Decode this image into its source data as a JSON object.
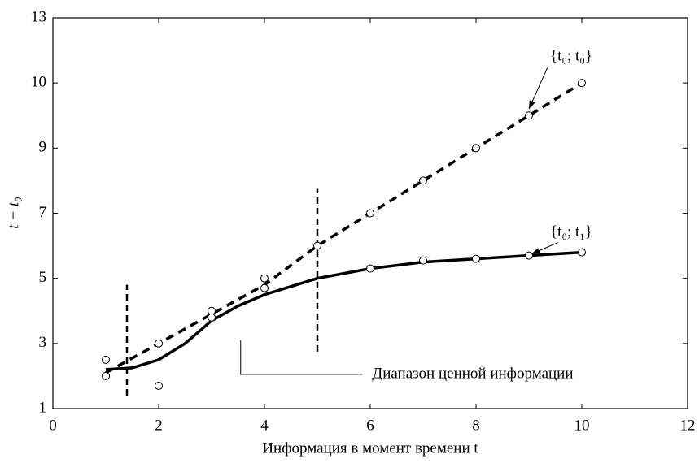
{
  "chart_data": {
    "type": "line",
    "xlabel": "Информация в момент времени t",
    "ylabel": "t − t₀",
    "xlim": [
      0,
      12
    ],
    "xticks": [
      0,
      2,
      4,
      6,
      8,
      10,
      12
    ],
    "ylim": [
      1,
      13
    ],
    "yticks": [
      1,
      3,
      5,
      7,
      9,
      10,
      13
    ],
    "series": [
      {
        "name": "{t₀; t₀}",
        "color": "#000",
        "style": "dashed",
        "x": [
          1,
          2,
          3,
          4,
          5,
          6,
          7,
          8,
          9,
          10
        ],
        "values": [
          2.1,
          3,
          3.9,
          4.8,
          6,
          7,
          8,
          9,
          9.5,
          10
        ],
        "points_x": [
          1,
          1,
          2,
          3,
          4,
          5,
          6,
          7,
          8,
          9,
          10
        ],
        "points": [
          2.5,
          2,
          3,
          4,
          5,
          6,
          7,
          8,
          9,
          9.5,
          10
        ],
        "label_xy": [
          9.8,
          11.2
        ],
        "arrow_from": [
          9.35,
          10.7
        ],
        "arrow_to": [
          9.0,
          9.6
        ]
      },
      {
        "name": "{t₀; t₁}",
        "color": "#000",
        "style": "solid",
        "x": [
          1,
          1.5,
          2,
          2.5,
          3,
          3.5,
          4,
          5,
          6,
          7,
          8,
          9,
          10
        ],
        "values": [
          2.2,
          2.25,
          2.5,
          3.0,
          3.7,
          4.15,
          4.5,
          5.0,
          5.3,
          5.5,
          5.6,
          5.7,
          5.8
        ],
        "points_x": [
          2,
          3,
          4,
          6,
          7,
          8,
          9,
          10
        ],
        "points": [
          1.7,
          3.8,
          4.7,
          5.3,
          5.55,
          5.6,
          5.7,
          5.8
        ],
        "label_xy": [
          9.8,
          6.4
        ],
        "arrow_from": [
          9.55,
          6.1
        ],
        "arrow_to": [
          9.05,
          5.75
        ]
      }
    ],
    "vlines": [
      {
        "x": 1.4,
        "y": [
          1.4,
          4.8
        ]
      },
      {
        "x": 5,
        "y": [
          2.75,
          7.75
        ]
      }
    ],
    "annotation": {
      "text": "Диапазон ценной информации",
      "x": 3.55,
      "y_top": 3.1,
      "y_bottom": 2.05,
      "x_end": 5.85
    }
  }
}
